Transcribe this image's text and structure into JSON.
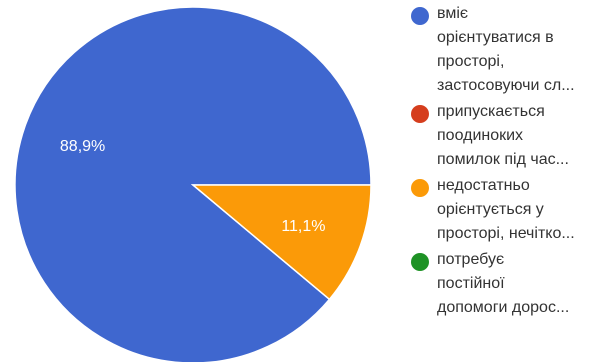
{
  "chart_data": {
    "type": "pie",
    "slices": [
      {
        "label": "вміє орієнтуватися в просторі, застосовуючи сл...",
        "value": 88.9,
        "value_label": "88,9%",
        "color": "#3f67cf"
      },
      {
        "label": "припускається поодиноких помилок під час...",
        "value": 0,
        "value_label": "",
        "color": "#d53d1d"
      },
      {
        "label": "недостатньо орієнтується у просторі, нечітко...",
        "value": 11.1,
        "value_label": "11,1%",
        "color": "#fb9a08"
      },
      {
        "label": "потребує постійної допомоги дорос...",
        "value": 0,
        "value_label": "",
        "color": "#1e9225"
      }
    ],
    "legend_lines": [
      [
        "вміє",
        "орієнтуватися в",
        "просторі,",
        "застосовуючи сл..."
      ],
      [
        "припускається",
        "поодиноких",
        "помилок під час..."
      ],
      [
        "недостатньо",
        "орієнтується у",
        "просторі, нечітко..."
      ],
      [
        "потребує",
        "постійної",
        "допомоги дорос..."
      ]
    ],
    "legend_position": "right",
    "start_angle": "3 o'clock",
    "direction": "counter-clockwise"
  }
}
